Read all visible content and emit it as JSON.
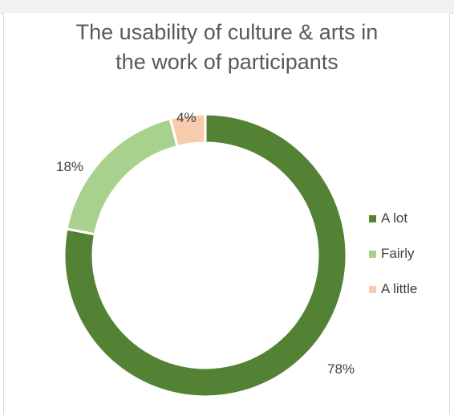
{
  "chart_data": {
    "type": "pie",
    "title_lines": [
      "The usability of culture & arts in",
      "the work of participants"
    ],
    "categories": [
      "A lot",
      "Fairly",
      "A little"
    ],
    "values": [
      78,
      18,
      4
    ],
    "value_labels": [
      "78%",
      "18%",
      "4%"
    ],
    "colors": [
      "#548235",
      "#a9d18e",
      "#f8cbad"
    ],
    "donut": true,
    "legend_position": "right"
  }
}
